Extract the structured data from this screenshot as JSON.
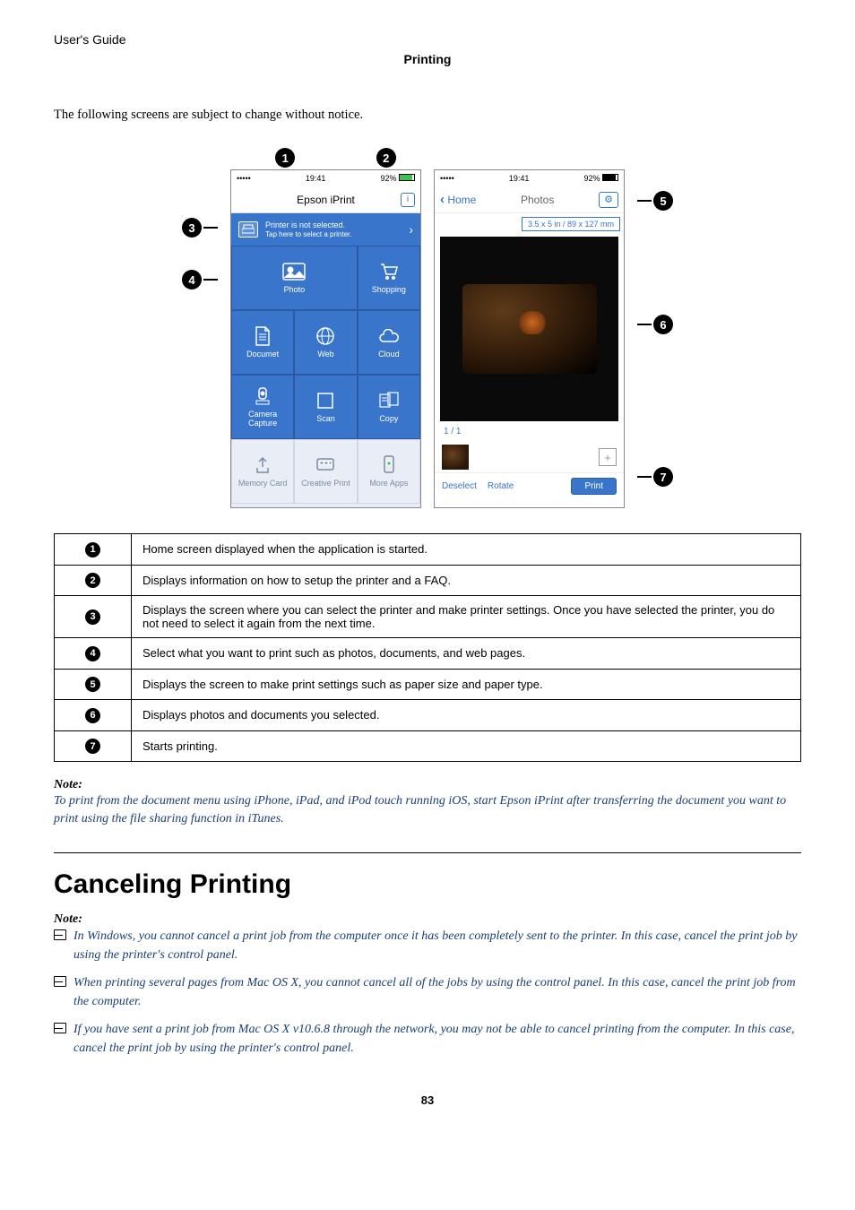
{
  "header_title": "User's Guide",
  "section_title": "Printing",
  "intro": "The following screens are subject to change without notice.",
  "phone1": {
    "status": {
      "carrier": "•••••",
      "wifi": "⌔",
      "time": "19:41",
      "battery_pct": "92%"
    },
    "title": "Epson iPrint",
    "printer_line1": "Printer is not selected.",
    "printer_line2": "Tap here to select a printer.",
    "tiles": {
      "photo": "Photo",
      "shopping": "Shopping",
      "document": "Documet",
      "web": "Web",
      "cloud": "Cloud",
      "camera": "Camera Capture",
      "scan": "Scan",
      "copy": "Copy",
      "memory": "Memory Card",
      "creative": "Creative Print",
      "more": "More Apps"
    }
  },
  "phone2": {
    "status": {
      "carrier": "•••••",
      "wifi": "⌔",
      "time": "19:41",
      "battery_pct": "92%"
    },
    "home": "Home",
    "center": "Photos",
    "size_badge": "3.5 x 5 in / 89 x 127 mm",
    "counter": "1 / 1",
    "deselect": "Deselect",
    "rotate": "Rotate",
    "print": "Print"
  },
  "table": [
    {
      "n": "1",
      "txt": "Home screen displayed when the application is started."
    },
    {
      "n": "2",
      "txt": "Displays information on how to setup the printer and a FAQ."
    },
    {
      "n": "3",
      "txt": "Displays the screen where you can select the printer and make printer settings. Once you have selected the printer, you do not need to select it again from the next time."
    },
    {
      "n": "4",
      "txt": "Select what you want to print such as photos, documents, and web pages."
    },
    {
      "n": "5",
      "txt": "Displays the screen to make print settings such as paper size and paper type."
    },
    {
      "n": "6",
      "txt": "Displays photos and documents you selected."
    },
    {
      "n": "7",
      "txt": "Starts printing."
    }
  ],
  "note1_head": "Note:",
  "note1_body": "To print from the document menu using iPhone, iPad, and iPod touch running iOS, start Epson iPrint after transferring the document you want to print using the file sharing function in iTunes.",
  "cancel_head": "Canceling Printing",
  "note2_head": "Note:",
  "note2_items": [
    "In Windows, you cannot cancel a print job from the computer once it has been completely sent to the printer. In this case, cancel the print job by using the printer's control panel.",
    "When printing several pages from Mac OS X, you cannot cancel all of the jobs by using the control panel. In this case, cancel the print job from the computer.",
    "If you have sent a print job from Mac OS X v10.6.8 through the network, you may not be able to cancel printing from the computer. In this case, cancel the print job by using the printer's control panel."
  ],
  "page_number": "83"
}
